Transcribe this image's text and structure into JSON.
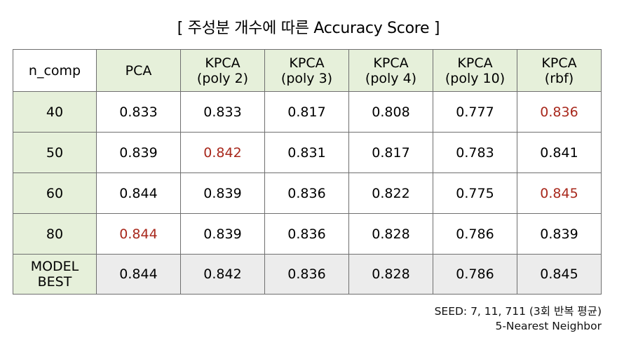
{
  "title": "[ 주성분 개수에 따른 Accuracy Score ]",
  "table": {
    "corner": "n_comp",
    "columns": [
      {
        "line1": "PCA",
        "line2": ""
      },
      {
        "line1": "KPCA",
        "line2": "(poly 2)"
      },
      {
        "line1": "KPCA",
        "line2": "(poly 3)"
      },
      {
        "line1": "KPCA",
        "line2": "(poly 4)"
      },
      {
        "line1": "KPCA",
        "line2": "(poly 10)"
      },
      {
        "line1": "KPCA",
        "line2": "(rbf)"
      }
    ],
    "rows": [
      {
        "label": "40",
        "values": [
          "0.833",
          "0.833",
          "0.817",
          "0.808",
          "0.777",
          "0.836"
        ]
      },
      {
        "label": "50",
        "values": [
          "0.839",
          "0.842",
          "0.831",
          "0.817",
          "0.783",
          "0.841"
        ]
      },
      {
        "label": "60",
        "values": [
          "0.844",
          "0.839",
          "0.836",
          "0.822",
          "0.775",
          "0.845"
        ]
      },
      {
        "label": "80",
        "values": [
          "0.844",
          "0.839",
          "0.836",
          "0.828",
          "0.786",
          "0.839"
        ]
      }
    ],
    "best_row": {
      "label_line1": "MODEL",
      "label_line2": "BEST",
      "values": [
        "0.844",
        "0.842",
        "0.836",
        "0.828",
        "0.786",
        "0.845"
      ]
    },
    "highlight_color": "#a8281c",
    "header_fill": "#e6f0da",
    "best_fill": "#ececec"
  },
  "notes": {
    "seed": "SEED: 7, 11, 711 (3회 반복 평균)",
    "model": "5-Nearest Neighbor"
  }
}
